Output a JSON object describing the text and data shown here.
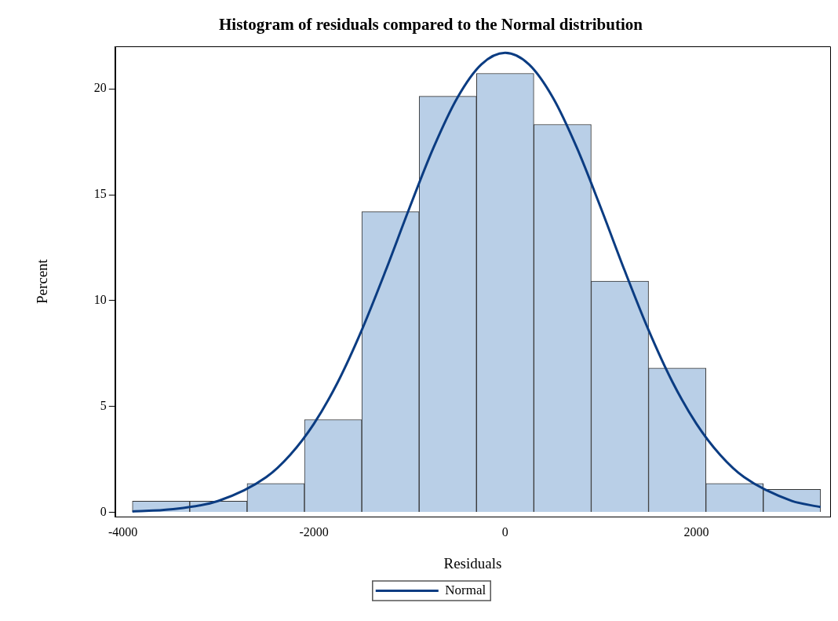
{
  "chart_data": {
    "type": "histogram",
    "title": "Histogram of residuals compared to the Normal distribution",
    "xlabel": "Residuals",
    "ylabel": "Percent",
    "bins": [
      -3900,
      -3300,
      -2700,
      -2100,
      -1500,
      -900,
      -300,
      300,
      900,
      1500,
      2100,
      2700,
      3300
    ],
    "values": [
      0.53,
      0.53,
      1.36,
      4.38,
      14.2,
      19.65,
      20.73,
      18.32,
      10.92,
      6.81,
      1.36,
      1.09
    ],
    "color": "#b9cfe7",
    "series": [
      {
        "type": "line",
        "name": "Normal",
        "color": "#0b3c82",
        "x": [
          -3900,
          -3500,
          -3000,
          -2500,
          -2250,
          -2000,
          -1750,
          -1500,
          -1250,
          -1000,
          -750,
          -500,
          -250,
          0,
          250,
          500,
          750,
          1000,
          1250,
          1500,
          1750,
          2000,
          2250,
          2500,
          3000,
          3300
        ],
        "values": [
          0.04,
          0.14,
          0.54,
          1.66,
          2.71,
          4.19,
          6.16,
          8.61,
          11.42,
          14.39,
          17.22,
          19.58,
          21.15,
          21.7,
          21.15,
          19.58,
          17.22,
          14.39,
          11.42,
          8.61,
          6.16,
          4.19,
          2.71,
          1.66,
          0.54,
          0.25
        ]
      }
    ],
    "xlim": [
      -4080,
      3400
    ],
    "xticks": [
      -4000,
      -2000,
      0,
      2000
    ],
    "ylim": [
      -0.2,
      22
    ],
    "yticks": [
      0,
      5,
      10,
      15,
      20
    ],
    "grid": false,
    "legend": "bottom",
    "marker": "none",
    "line_style": "solid"
  }
}
